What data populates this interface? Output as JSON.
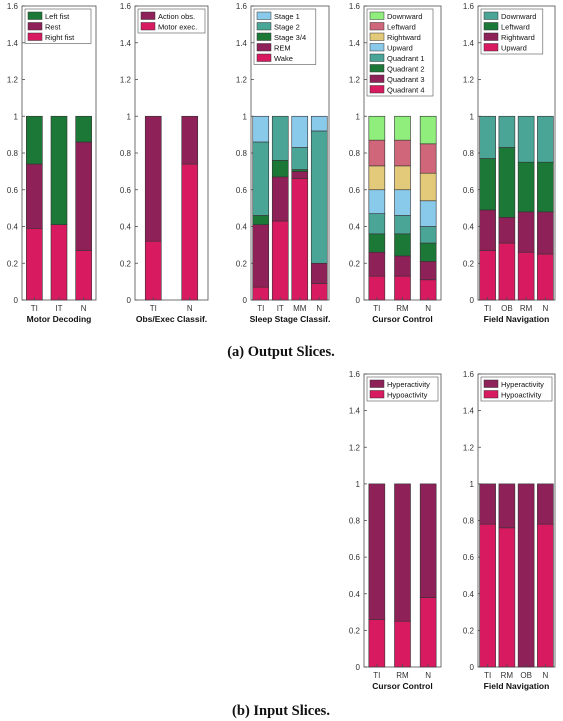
{
  "captions": {
    "output": "(a) Output Slices.",
    "input": "(b) Input Slices."
  },
  "chart_data": [
    {
      "type": "bar",
      "stacked": true,
      "group": "output",
      "xlabel": "Motor Decoding",
      "ylim": [
        0,
        1.6
      ],
      "yticks": [
        "0",
        "0.2",
        "0.4",
        "0.6",
        "0.8",
        "1",
        "1.2",
        "1.4",
        "1.6"
      ],
      "categories": [
        "TI",
        "IT",
        "N"
      ],
      "series": [
        {
          "name": "Right fist",
          "color": "#d81b60",
          "values": [
            0.39,
            0.41,
            0.27
          ]
        },
        {
          "name": "Rest",
          "color": "#8e2157",
          "values": [
            0.35,
            0.0,
            0.59
          ]
        },
        {
          "name": "Left fist",
          "color": "#1b7837",
          "values": [
            0.26,
            0.59,
            0.14
          ]
        }
      ],
      "legend": [
        "Left fist",
        "Rest",
        "Right fist"
      ]
    },
    {
      "type": "bar",
      "stacked": true,
      "group": "output",
      "xlabel": "Obs/Exec Classif.",
      "ylim": [
        0,
        1.6
      ],
      "yticks": [
        "0",
        "0.2",
        "0.4",
        "0.6",
        "0.8",
        "1",
        "1.2",
        "1.4",
        "1.6"
      ],
      "categories": [
        "TI",
        "N"
      ],
      "series": [
        {
          "name": "Motor exec.",
          "color": "#d81b60",
          "values": [
            0.32,
            0.74
          ]
        },
        {
          "name": "Action obs.",
          "color": "#8e2157",
          "values": [
            0.68,
            0.26
          ]
        }
      ],
      "legend": [
        "Action obs.",
        "Motor exec."
      ]
    },
    {
      "type": "bar",
      "stacked": true,
      "group": "output",
      "xlabel": "Sleep Stage Classif.",
      "ylim": [
        0,
        1.6
      ],
      "yticks": [
        "0",
        "0.2",
        "0.4",
        "0.6",
        "0.8",
        "1",
        "1.2",
        "1.4",
        "1.6"
      ],
      "categories": [
        "TI",
        "IT",
        "MM",
        "N"
      ],
      "series": [
        {
          "name": "Wake",
          "color": "#d81b60",
          "values": [
            0.07,
            0.43,
            0.66,
            0.09
          ]
        },
        {
          "name": "REM",
          "color": "#8e2157",
          "values": [
            0.34,
            0.24,
            0.04,
            0.11
          ]
        },
        {
          "name": "Stage 3/4",
          "color": "#1b7837",
          "values": [
            0.05,
            0.09,
            0.01,
            0.0
          ]
        },
        {
          "name": "Stage 2",
          "color": "#4aa597",
          "values": [
            0.4,
            0.24,
            0.12,
            0.72
          ]
        },
        {
          "name": "Stage 1",
          "color": "#89c9ea",
          "values": [
            0.14,
            0.0,
            0.17,
            0.08
          ]
        }
      ],
      "legend": [
        "Stage 1",
        "Stage 2",
        "Stage 3/4",
        "REM",
        "Wake"
      ]
    },
    {
      "type": "bar",
      "stacked": true,
      "group": "output",
      "xlabel": "Cursor Control",
      "ylim": [
        0,
        1.6
      ],
      "yticks": [
        "0",
        "0.2",
        "0.4",
        "0.6",
        "0.8",
        "1",
        "1.2",
        "1.4",
        "1.6"
      ],
      "categories": [
        "TI",
        "RM",
        "N"
      ],
      "series": [
        {
          "name": "Quadrant 4",
          "color": "#d81b60",
          "values": [
            0.13,
            0.13,
            0.11
          ]
        },
        {
          "name": "Quadrant 3",
          "color": "#8e2157",
          "values": [
            0.13,
            0.11,
            0.1
          ]
        },
        {
          "name": "Quadrant 2",
          "color": "#1b7837",
          "values": [
            0.1,
            0.12,
            0.1
          ]
        },
        {
          "name": "Quadrant 1",
          "color": "#4aa597",
          "values": [
            0.11,
            0.1,
            0.09
          ]
        },
        {
          "name": "Upward",
          "color": "#89c9ea",
          "values": [
            0.13,
            0.14,
            0.14
          ]
        },
        {
          "name": "Rightward",
          "color": "#e3c97a",
          "values": [
            0.13,
            0.13,
            0.15
          ]
        },
        {
          "name": "Leftward",
          "color": "#cf6679",
          "values": [
            0.14,
            0.14,
            0.16
          ]
        },
        {
          "name": "Downward",
          "color": "#90ee7c",
          "values": [
            0.13,
            0.13,
            0.15
          ]
        }
      ],
      "legend": [
        "Downward",
        "Leftward",
        "Rightward",
        "Upward",
        "Quadrant 1",
        "Quadrant 2",
        "Quadrant 3",
        "Quadrant 4"
      ]
    },
    {
      "type": "bar",
      "stacked": true,
      "group": "output",
      "xlabel": "Field Navigation",
      "ylim": [
        0,
        1.6
      ],
      "yticks": [
        "0",
        "0.2",
        "0.4",
        "0.6",
        "0.8",
        "1",
        "1.2",
        "1.4",
        "1.6"
      ],
      "categories": [
        "TI",
        "OB",
        "RM",
        "N"
      ],
      "series": [
        {
          "name": "Upward",
          "color": "#d81b60",
          "values": [
            0.27,
            0.31,
            0.26,
            0.25
          ]
        },
        {
          "name": "Rightward",
          "color": "#8e2157",
          "values": [
            0.22,
            0.14,
            0.22,
            0.23
          ]
        },
        {
          "name": "Leftward",
          "color": "#1b7837",
          "values": [
            0.28,
            0.38,
            0.27,
            0.27
          ]
        },
        {
          "name": "Downward",
          "color": "#4aa597",
          "values": [
            0.23,
            0.17,
            0.25,
            0.25
          ]
        }
      ],
      "legend": [
        "Downward",
        "Leftward",
        "Rightward",
        "Upward"
      ]
    },
    {
      "type": "bar",
      "stacked": true,
      "group": "input",
      "xlabel": "Cursor Control",
      "ylim": [
        0,
        1.6
      ],
      "yticks": [
        "0",
        "0.2",
        "0.4",
        "0.6",
        "0.8",
        "1",
        "1.2",
        "1.4",
        "1.6"
      ],
      "categories": [
        "TI",
        "RM",
        "N"
      ],
      "series": [
        {
          "name": "Hypoactivity",
          "color": "#d81b60",
          "values": [
            0.26,
            0.25,
            0.38
          ]
        },
        {
          "name": "Hyperactivity",
          "color": "#8e2157",
          "values": [
            0.74,
            0.75,
            0.62
          ]
        }
      ],
      "legend": [
        "Hyperactivity",
        "Hypoactivity"
      ]
    },
    {
      "type": "bar",
      "stacked": true,
      "group": "input",
      "xlabel": "Field Navigation",
      "ylim": [
        0,
        1.6
      ],
      "yticks": [
        "0",
        "0.2",
        "0.4",
        "0.6",
        "0.8",
        "1",
        "1.2",
        "1.4",
        "1.6"
      ],
      "categories": [
        "TI",
        "RM",
        "OB",
        "N"
      ],
      "series": [
        {
          "name": "Hypoactivity",
          "color": "#d81b60",
          "values": [
            0.78,
            0.76,
            0.0,
            0.78
          ]
        },
        {
          "name": "Hyperactivity",
          "color": "#8e2157",
          "values": [
            0.22,
            0.24,
            1.0,
            0.22
          ]
        }
      ],
      "legend": [
        "Hyperactivity",
        "Hypoactivity"
      ]
    }
  ]
}
